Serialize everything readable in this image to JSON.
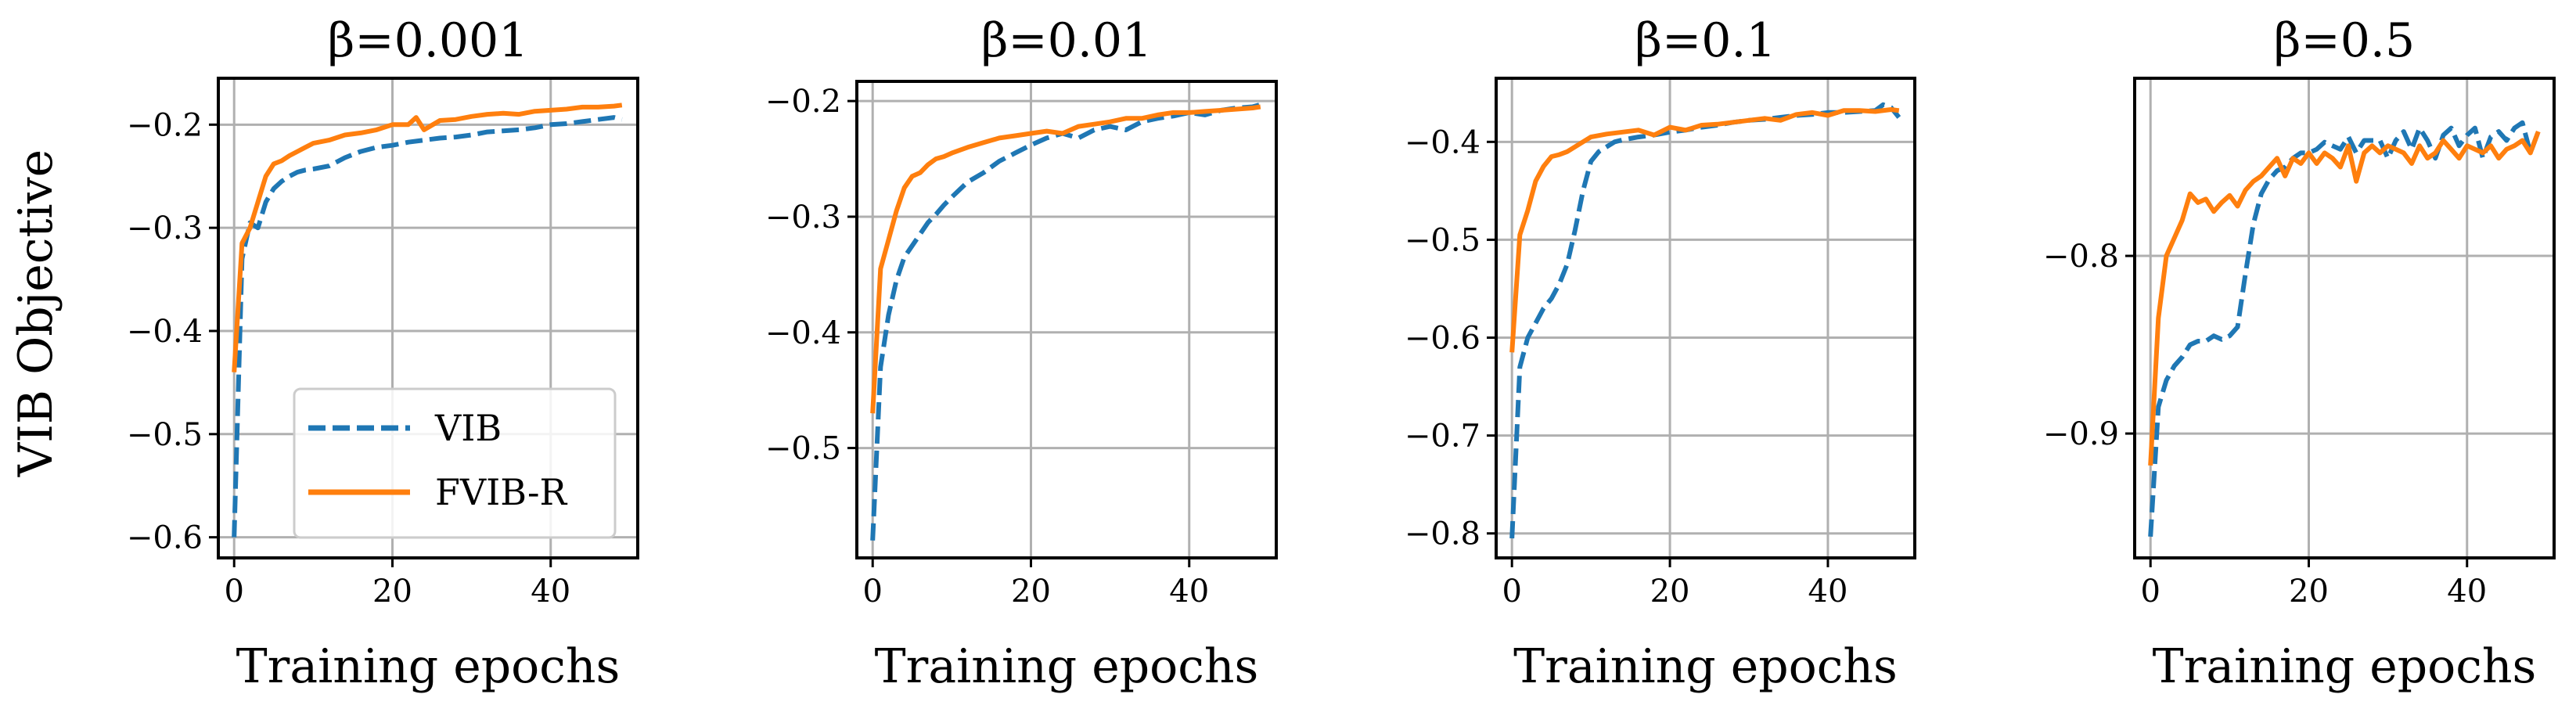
{
  "figure": {
    "ylabel": "VIB Objective",
    "xlabel": "Training epochs"
  },
  "legend": {
    "items": [
      {
        "label": "VIB",
        "color": "#1f77b4",
        "style": "dashed"
      },
      {
        "label": "FVIB-R",
        "color": "#ff7f0e",
        "style": "solid"
      }
    ]
  },
  "chart_data": [
    {
      "type": "line",
      "title": "β=0.001",
      "xlabel": "Training epochs",
      "ylabel": "VIB Objective",
      "xlim": [
        -2,
        51
      ],
      "ylim": [
        -0.62,
        -0.155
      ],
      "xticks": [
        0,
        20,
        40
      ],
      "yticks": [
        -0.6,
        -0.5,
        -0.4,
        -0.3,
        -0.2
      ],
      "ytick_labels": [
        "−0.6",
        "−0.5",
        "−0.4",
        "−0.3",
        "−0.2"
      ],
      "xtick_labels": [
        "0",
        "20",
        "40"
      ],
      "grid": true,
      "legend_position": "lower-right",
      "series": [
        {
          "name": "VIB",
          "color": "#1f77b4",
          "dash": true,
          "x": [
            0,
            1,
            2,
            3,
            4,
            5,
            6,
            7,
            8,
            9,
            10,
            12,
            14,
            16,
            18,
            20,
            22,
            24,
            26,
            28,
            30,
            32,
            34,
            36,
            38,
            40,
            42,
            44,
            46,
            48,
            49
          ],
          "y": [
            -0.6,
            -0.33,
            -0.295,
            -0.3,
            -0.275,
            -0.262,
            -0.255,
            -0.25,
            -0.246,
            -0.244,
            -0.243,
            -0.24,
            -0.232,
            -0.226,
            -0.222,
            -0.22,
            -0.217,
            -0.215,
            -0.213,
            -0.212,
            -0.21,
            -0.207,
            -0.206,
            -0.205,
            -0.203,
            -0.2,
            -0.199,
            -0.197,
            -0.195,
            -0.193,
            -0.195
          ]
        },
        {
          "name": "FVIB-R",
          "color": "#ff7f0e",
          "dash": false,
          "x": [
            0,
            1,
            2,
            3,
            4,
            5,
            6,
            7,
            8,
            9,
            10,
            12,
            14,
            16,
            18,
            20,
            22,
            23,
            24,
            26,
            28,
            30,
            32,
            34,
            36,
            38,
            40,
            42,
            44,
            46,
            48,
            49
          ],
          "y": [
            -0.44,
            -0.315,
            -0.3,
            -0.275,
            -0.25,
            -0.238,
            -0.235,
            -0.23,
            -0.226,
            -0.222,
            -0.218,
            -0.215,
            -0.21,
            -0.208,
            -0.205,
            -0.2,
            -0.2,
            -0.193,
            -0.205,
            -0.196,
            -0.195,
            -0.192,
            -0.19,
            -0.189,
            -0.19,
            -0.187,
            -0.186,
            -0.185,
            -0.183,
            -0.183,
            -0.182,
            -0.181
          ]
        }
      ]
    },
    {
      "type": "line",
      "title": "β=0.01",
      "xlabel": "Training epochs",
      "ylabel": "",
      "xlim": [
        -2,
        51
      ],
      "ylim": [
        -0.595,
        -0.183
      ],
      "xticks": [
        0,
        20,
        40
      ],
      "yticks": [
        -0.5,
        -0.4,
        -0.3,
        -0.2
      ],
      "ytick_labels": [
        "−0.5",
        "−0.4",
        "−0.3",
        "−0.2"
      ],
      "xtick_labels": [
        "0",
        "20",
        "40"
      ],
      "grid": true,
      "series": [
        {
          "name": "VIB",
          "color": "#1f77b4",
          "dash": true,
          "x": [
            0,
            1,
            2,
            3,
            4,
            5,
            6,
            7,
            8,
            9,
            10,
            12,
            14,
            16,
            18,
            20,
            22,
            24,
            26,
            28,
            30,
            32,
            34,
            36,
            38,
            40,
            42,
            44,
            46,
            48,
            49
          ],
          "y": [
            -0.58,
            -0.43,
            -0.385,
            -0.355,
            -0.335,
            -0.325,
            -0.315,
            -0.305,
            -0.298,
            -0.29,
            -0.283,
            -0.27,
            -0.262,
            -0.252,
            -0.245,
            -0.238,
            -0.232,
            -0.228,
            -0.232,
            -0.225,
            -0.222,
            -0.225,
            -0.218,
            -0.215,
            -0.213,
            -0.21,
            -0.212,
            -0.208,
            -0.206,
            -0.205,
            -0.203
          ]
        },
        {
          "name": "FVIB-R",
          "color": "#ff7f0e",
          "dash": false,
          "x": [
            0,
            1,
            2,
            3,
            4,
            5,
            6,
            7,
            8,
            9,
            10,
            12,
            14,
            16,
            18,
            20,
            22,
            24,
            26,
            28,
            30,
            32,
            34,
            36,
            38,
            40,
            42,
            44,
            46,
            48,
            49
          ],
          "y": [
            -0.47,
            -0.345,
            -0.32,
            -0.295,
            -0.275,
            -0.265,
            -0.262,
            -0.255,
            -0.25,
            -0.248,
            -0.245,
            -0.24,
            -0.236,
            -0.232,
            -0.23,
            -0.228,
            -0.226,
            -0.228,
            -0.222,
            -0.22,
            -0.218,
            -0.215,
            -0.215,
            -0.212,
            -0.21,
            -0.21,
            -0.209,
            -0.208,
            -0.207,
            -0.206,
            -0.205
          ]
        }
      ]
    },
    {
      "type": "line",
      "title": "β=0.1",
      "xlabel": "Training epochs",
      "ylabel": "",
      "xlim": [
        -2,
        51
      ],
      "ylim": [
        -0.825,
        -0.335
      ],
      "xticks": [
        0,
        20,
        40
      ],
      "yticks": [
        -0.8,
        -0.7,
        -0.6,
        -0.5,
        -0.4
      ],
      "ytick_labels": [
        "−0.8",
        "−0.7",
        "−0.6",
        "−0.5",
        "−0.4"
      ],
      "xtick_labels": [
        "0",
        "20",
        "40"
      ],
      "grid": true,
      "series": [
        {
          "name": "VIB",
          "color": "#1f77b4",
          "dash": true,
          "x": [
            0,
            1,
            2,
            3,
            4,
            5,
            6,
            7,
            8,
            9,
            10,
            11,
            12,
            13,
            14,
            16,
            18,
            20,
            22,
            24,
            26,
            28,
            30,
            32,
            34,
            36,
            38,
            40,
            42,
            44,
            46,
            47,
            48,
            49
          ],
          "y": [
            -0.805,
            -0.63,
            -0.6,
            -0.585,
            -0.57,
            -0.56,
            -0.545,
            -0.525,
            -0.49,
            -0.45,
            -0.42,
            -0.41,
            -0.405,
            -0.4,
            -0.398,
            -0.395,
            -0.393,
            -0.39,
            -0.388,
            -0.385,
            -0.383,
            -0.38,
            -0.378,
            -0.377,
            -0.375,
            -0.373,
            -0.372,
            -0.37,
            -0.37,
            -0.369,
            -0.368,
            -0.362,
            -0.365,
            -0.375
          ]
        },
        {
          "name": "FVIB-R",
          "color": "#ff7f0e",
          "dash": false,
          "x": [
            0,
            1,
            2,
            3,
            4,
            5,
            6,
            7,
            8,
            9,
            10,
            12,
            14,
            16,
            18,
            20,
            22,
            24,
            26,
            28,
            30,
            32,
            34,
            36,
            38,
            40,
            42,
            44,
            46,
            48,
            49
          ],
          "y": [
            -0.615,
            -0.495,
            -0.47,
            -0.44,
            -0.425,
            -0.415,
            -0.413,
            -0.41,
            -0.405,
            -0.4,
            -0.395,
            -0.392,
            -0.39,
            -0.388,
            -0.393,
            -0.385,
            -0.388,
            -0.383,
            -0.382,
            -0.38,
            -0.378,
            -0.376,
            -0.378,
            -0.372,
            -0.37,
            -0.373,
            -0.368,
            -0.368,
            -0.369,
            -0.367,
            -0.368
          ]
        }
      ]
    },
    {
      "type": "line",
      "title": "β=0.5",
      "xlabel": "Training epochs",
      "ylabel": "",
      "xlim": [
        -2,
        51
      ],
      "ylim": [
        -0.97,
        -0.7
      ],
      "xticks": [
        0,
        20,
        40
      ],
      "yticks": [
        -0.9,
        -0.8
      ],
      "ytick_labels": [
        "−0.9",
        "−0.8"
      ],
      "xtick_labels": [
        "0",
        "20",
        "40"
      ],
      "grid": true,
      "series": [
        {
          "name": "VIB",
          "color": "#1f77b4",
          "dash": true,
          "x": [
            0,
            1,
            2,
            3,
            4,
            5,
            6,
            7,
            8,
            9,
            10,
            11,
            12,
            13,
            14,
            15,
            16,
            17,
            18,
            19,
            20,
            21,
            22,
            23,
            24,
            25,
            26,
            27,
            28,
            29,
            30,
            31,
            32,
            33,
            34,
            35,
            36,
            37,
            38,
            39,
            40,
            41,
            42,
            43,
            44,
            45,
            46,
            47,
            48,
            49
          ],
          "y": [
            -0.958,
            -0.885,
            -0.87,
            -0.862,
            -0.857,
            -0.85,
            -0.848,
            -0.848,
            -0.845,
            -0.847,
            -0.845,
            -0.84,
            -0.81,
            -0.782,
            -0.765,
            -0.757,
            -0.752,
            -0.75,
            -0.745,
            -0.742,
            -0.742,
            -0.74,
            -0.736,
            -0.738,
            -0.74,
            -0.733,
            -0.742,
            -0.735,
            -0.735,
            -0.735,
            -0.745,
            -0.735,
            -0.73,
            -0.74,
            -0.728,
            -0.735,
            -0.745,
            -0.732,
            -0.728,
            -0.738,
            -0.732,
            -0.728,
            -0.745,
            -0.733,
            -0.73,
            -0.735,
            -0.728,
            -0.725,
            -0.742,
            -0.73
          ]
        },
        {
          "name": "FVIB-R",
          "color": "#ff7f0e",
          "dash": false,
          "x": [
            0,
            1,
            2,
            3,
            4,
            5,
            6,
            7,
            8,
            9,
            10,
            11,
            12,
            13,
            14,
            15,
            16,
            17,
            18,
            19,
            20,
            21,
            22,
            23,
            24,
            25,
            26,
            27,
            28,
            29,
            30,
            31,
            32,
            33,
            34,
            35,
            36,
            37,
            38,
            39,
            40,
            41,
            42,
            43,
            44,
            45,
            46,
            47,
            48,
            49
          ],
          "y": [
            -0.918,
            -0.835,
            -0.8,
            -0.79,
            -0.78,
            -0.765,
            -0.77,
            -0.768,
            -0.775,
            -0.77,
            -0.766,
            -0.772,
            -0.763,
            -0.758,
            -0.755,
            -0.75,
            -0.745,
            -0.755,
            -0.745,
            -0.748,
            -0.742,
            -0.748,
            -0.742,
            -0.745,
            -0.75,
            -0.738,
            -0.758,
            -0.742,
            -0.738,
            -0.742,
            -0.738,
            -0.74,
            -0.742,
            -0.748,
            -0.738,
            -0.745,
            -0.742,
            -0.735,
            -0.74,
            -0.745,
            -0.738,
            -0.74,
            -0.742,
            -0.738,
            -0.745,
            -0.74,
            -0.738,
            -0.735,
            -0.742,
            -0.73
          ]
        }
      ]
    }
  ]
}
